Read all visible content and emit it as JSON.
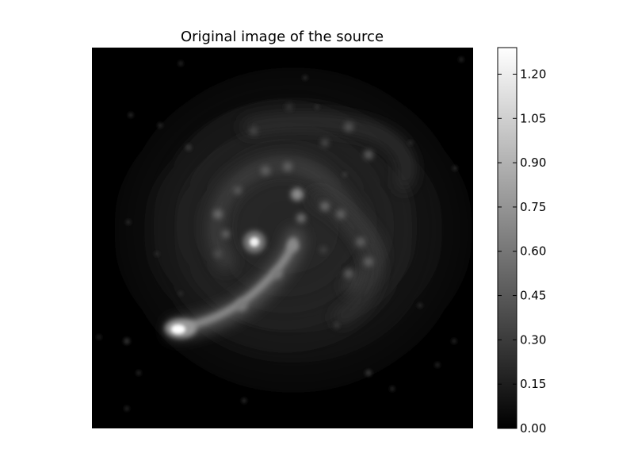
{
  "chart_data": {
    "type": "heatmap",
    "title": "Original image of the source",
    "colormap": "gray",
    "colors": {
      "low": "#000000",
      "high": "#ffffff",
      "background": "#ffffff"
    },
    "colorbar": {
      "range": [
        0.0,
        1.29
      ],
      "ticks": [
        0.0,
        0.15,
        0.3,
        0.45,
        0.6,
        0.75,
        0.9,
        1.05,
        1.2
      ],
      "tick_labels": [
        "0.00",
        "0.15",
        "0.30",
        "0.45",
        "0.60",
        "0.75",
        "0.90",
        "1.05",
        "1.20"
      ],
      "placement": "right"
    },
    "image": {
      "axes_visible": false,
      "description": "grayscale spiral galaxy source image"
    }
  }
}
